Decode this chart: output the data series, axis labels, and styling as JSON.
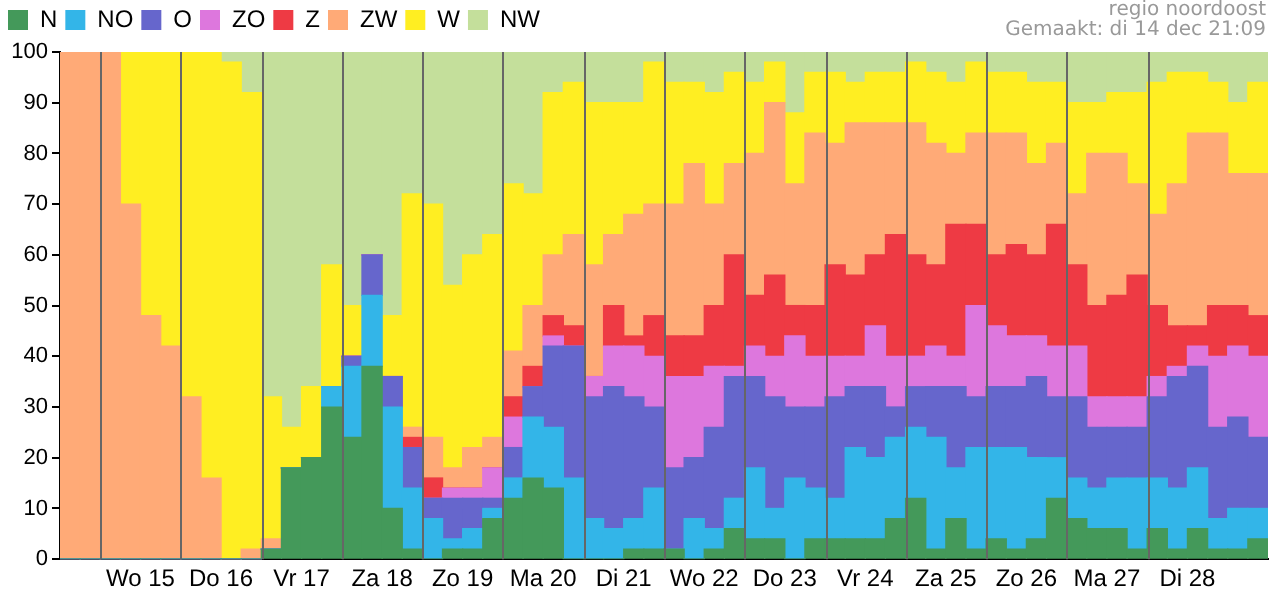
{
  "chart_data": {
    "type": "bar",
    "stacked": true,
    "grid": "x",
    "legend": "top left",
    "annotations": [
      "regio noordoost",
      "Gemaakt: di 14 dec 21:09"
    ],
    "categories": [
      null,
      null,
      null,
      "Wo 15",
      null,
      null,
      null,
      "Do 16",
      null,
      null,
      null,
      "Vr 17",
      null,
      null,
      null,
      "Za 18",
      null,
      null,
      null,
      "Zo 19",
      null,
      null,
      null,
      "Ma 20",
      null,
      null,
      null,
      "Di 21",
      null,
      null,
      null,
      "Wo 22",
      null,
      null,
      null,
      "Do 23",
      null,
      null,
      null,
      "Vr 24",
      null,
      null,
      null,
      "Za 25",
      null,
      null,
      null,
      "Zo 26",
      null,
      null,
      null,
      "Ma 27",
      null,
      null,
      null,
      "Di 28",
      null,
      null,
      null,
      null
    ],
    "ylim": [
      0,
      100
    ],
    "yticks": [
      0,
      10,
      20,
      30,
      40,
      50,
      60,
      70,
      80,
      90,
      100
    ],
    "series": [
      {
        "name": "N",
        "color": "#44995a",
        "values": [
          0,
          0,
          0,
          0,
          0,
          0,
          0,
          0,
          0,
          0,
          2,
          18,
          20,
          30,
          24,
          38,
          10,
          2,
          0,
          2,
          2,
          8,
          12,
          16,
          14,
          0,
          0,
          0,
          2,
          2,
          2,
          0,
          2,
          6,
          4,
          4,
          0,
          4,
          4,
          4,
          4,
          8,
          12,
          2,
          8,
          2,
          4,
          2,
          4,
          12,
          8,
          6,
          6,
          2,
          6,
          2,
          6,
          2,
          2,
          4
        ]
      },
      {
        "name": "NO",
        "color": "#33b5e8",
        "values": [
          0,
          0,
          0,
          0,
          0,
          0,
          0,
          0,
          0,
          0,
          0,
          0,
          0,
          4,
          14,
          14,
          20,
          12,
          8,
          2,
          4,
          2,
          4,
          12,
          12,
          16,
          8,
          6,
          6,
          12,
          0,
          8,
          4,
          6,
          14,
          6,
          16,
          10,
          8,
          18,
          16,
          16,
          14,
          22,
          10,
          20,
          18,
          20,
          16,
          8,
          8,
          8,
          10,
          14,
          10,
          12,
          12,
          6,
          8,
          6
        ]
      },
      {
        "name": "O",
        "color": "#6666cc",
        "values": [
          0,
          0,
          0,
          0,
          0,
          0,
          0,
          0,
          0,
          0,
          0,
          0,
          0,
          0,
          2,
          8,
          6,
          8,
          4,
          8,
          6,
          2,
          6,
          6,
          16,
          26,
          24,
          28,
          24,
          16,
          16,
          12,
          20,
          24,
          18,
          22,
          14,
          16,
          20,
          12,
          14,
          6,
          8,
          10,
          16,
          10,
          12,
          12,
          16,
          12,
          16,
          12,
          10,
          10,
          16,
          22,
          20,
          18,
          18,
          14
        ]
      },
      {
        "name": "ZO",
        "color": "#dd77dd",
        "values": [
          0,
          0,
          0,
          0,
          0,
          0,
          0,
          0,
          0,
          0,
          0,
          0,
          0,
          0,
          0,
          0,
          0,
          0,
          0,
          2,
          2,
          6,
          6,
          0,
          2,
          0,
          4,
          8,
          10,
          10,
          18,
          16,
          12,
          2,
          6,
          8,
          14,
          10,
          8,
          6,
          12,
          10,
          6,
          8,
          6,
          18,
          12,
          10,
          8,
          10,
          10,
          6,
          6,
          6,
          4,
          2,
          4,
          14,
          14,
          16
        ]
      },
      {
        "name": "Z",
        "color": "#ee3a44",
        "values": [
          0,
          0,
          0,
          0,
          0,
          0,
          0,
          0,
          0,
          0,
          0,
          0,
          0,
          0,
          0,
          0,
          0,
          2,
          4,
          0,
          0,
          0,
          4,
          4,
          4,
          4,
          0,
          8,
          2,
          8,
          8,
          8,
          12,
          22,
          10,
          16,
          6,
          10,
          18,
          16,
          14,
          24,
          20,
          16,
          26,
          16,
          14,
          18,
          16,
          24,
          16,
          18,
          20,
          24,
          14,
          8,
          4,
          10,
          8,
          8
        ]
      },
      {
        "name": "ZW",
        "color": "#ffaa77",
        "values": [
          100,
          100,
          100,
          70,
          48,
          42,
          32,
          16,
          0,
          2,
          2,
          0,
          0,
          0,
          0,
          0,
          0,
          2,
          8,
          4,
          8,
          6,
          9,
          12,
          12,
          18,
          22,
          14,
          24,
          22,
          26,
          34,
          20,
          18,
          28,
          34,
          24,
          34,
          24,
          30,
          26,
          22,
          26,
          24,
          14,
          18,
          24,
          22,
          18,
          16,
          14,
          30,
          28,
          18,
          18,
          28,
          38,
          34,
          26,
          28
        ]
      },
      {
        "name": "W",
        "color": "#ffee22",
        "values": [
          0,
          0,
          0,
          30,
          52,
          58,
          68,
          84,
          98,
          90,
          28,
          8,
          14,
          24,
          10,
          0,
          12,
          46,
          46,
          36,
          38,
          40,
          33,
          22,
          32,
          30,
          32,
          26,
          22,
          28,
          24,
          16,
          22,
          18,
          14,
          8,
          14,
          12,
          14,
          8,
          10,
          10,
          12,
          14,
          14,
          14,
          12,
          12,
          16,
          12,
          18,
          10,
          12,
          18,
          26,
          22,
          12,
          10,
          14,
          18
        ]
      },
      {
        "name": "NW",
        "color": "#c4df9b",
        "values": [
          0,
          0,
          0,
          0,
          0,
          0,
          0,
          0,
          2,
          8,
          68,
          74,
          66,
          42,
          50,
          40,
          52,
          28,
          30,
          46,
          40,
          36,
          26,
          28,
          8,
          6,
          10,
          10,
          10,
          2,
          6,
          6,
          8,
          4,
          6,
          2,
          12,
          4,
          4,
          6,
          4,
          4,
          2,
          4,
          6,
          2,
          4,
          4,
          6,
          6,
          10,
          10,
          8,
          8,
          6,
          4,
          4,
          6,
          10,
          6
        ]
      }
    ]
  }
}
